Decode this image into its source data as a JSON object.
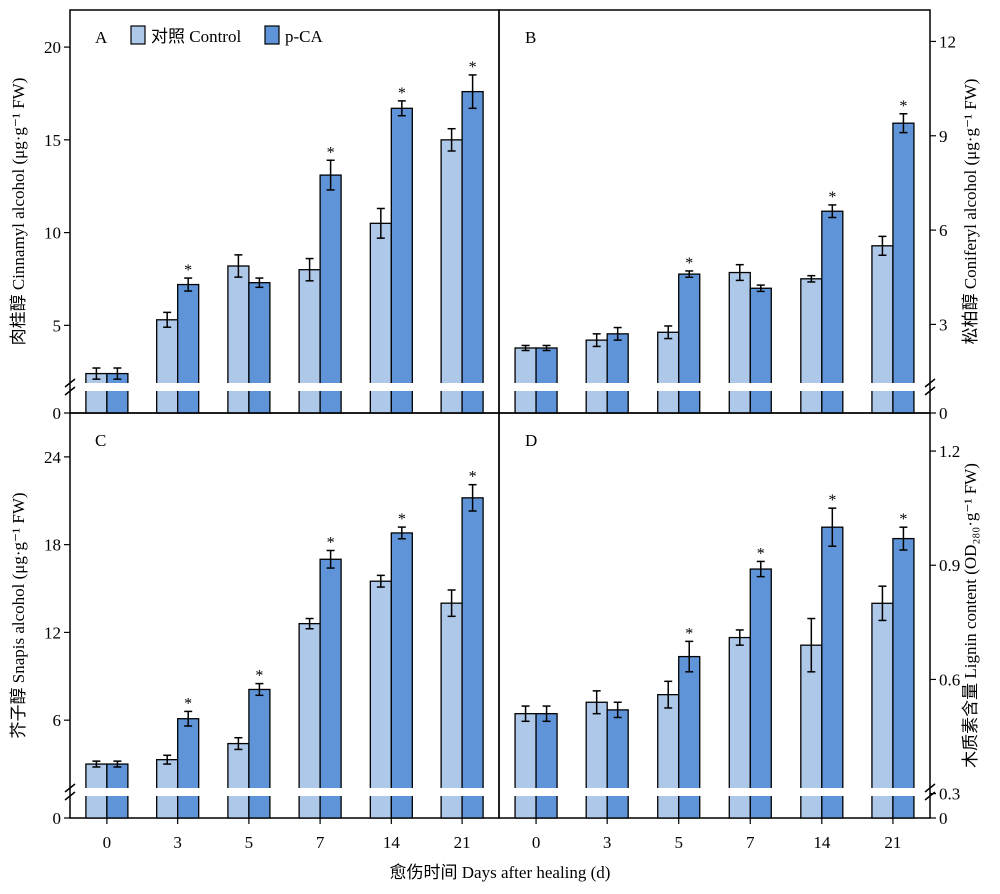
{
  "colors": {
    "control": "#aec8ea",
    "treatment": "#5f95d8",
    "stroke": "#000000"
  },
  "legend": {
    "control": "对照 Control",
    "treatment": "p-CA"
  },
  "shared_xlabel": "愈伤时间 Days after healing (d)",
  "chart_data": [
    {
      "id": "A",
      "type": "bar",
      "panel_label": "A",
      "ylabel": "肉桂醇 Cinnamyl alcohol (μg·g⁻¹ FW)",
      "categories": [
        "0",
        "3",
        "5",
        "7",
        "14",
        "21"
      ],
      "ylim": [
        0,
        22
      ],
      "break": [
        0,
        2
      ],
      "ticks": [
        0,
        5,
        10,
        15,
        20
      ],
      "series": [
        {
          "name": "对照 Control",
          "key": "control",
          "values": [
            2.4,
            5.3,
            8.2,
            8.0,
            10.5,
            15.0
          ],
          "errors": [
            0.3,
            0.4,
            0.6,
            0.6,
            0.8,
            0.6
          ],
          "stars": [
            false,
            false,
            false,
            false,
            false,
            false
          ]
        },
        {
          "name": "p-CA",
          "key": "treatment",
          "values": [
            2.4,
            7.2,
            7.3,
            13.1,
            16.7,
            17.6
          ],
          "errors": [
            0.3,
            0.35,
            0.25,
            0.8,
            0.4,
            0.9
          ],
          "stars": [
            false,
            true,
            false,
            true,
            true,
            true
          ]
        }
      ]
    },
    {
      "id": "B",
      "type": "bar",
      "panel_label": "B",
      "ylabel": "松柏醇 Coniferyl alcohol (μg·g⁻¹ FW)",
      "categories": [
        "0",
        "3",
        "5",
        "7",
        "14",
        "21"
      ],
      "ylim": [
        0,
        13
      ],
      "break": [
        0,
        1.2
      ],
      "ticks": [
        0,
        3,
        6,
        9,
        12
      ],
      "series": [
        {
          "name": "对照 Control",
          "key": "control",
          "values": [
            2.25,
            2.5,
            2.75,
            4.65,
            4.45,
            5.5
          ],
          "errors": [
            0.08,
            0.2,
            0.2,
            0.25,
            0.1,
            0.3
          ],
          "stars": [
            false,
            false,
            false,
            false,
            false,
            false
          ]
        },
        {
          "name": "p-CA",
          "key": "treatment",
          "values": [
            2.25,
            2.7,
            4.6,
            4.15,
            6.6,
            9.4
          ],
          "errors": [
            0.08,
            0.2,
            0.1,
            0.1,
            0.2,
            0.3
          ],
          "stars": [
            false,
            false,
            true,
            false,
            true,
            true
          ]
        }
      ]
    },
    {
      "id": "C",
      "type": "bar",
      "panel_label": "C",
      "ylabel": "芥子醇 Snapis alcohol (μg·g⁻¹ FW)",
      "categories": [
        "0",
        "3",
        "5",
        "7",
        "14",
        "21"
      ],
      "ylim": [
        0,
        27
      ],
      "break": [
        0,
        1.5
      ],
      "ticks": [
        0,
        6,
        12,
        18,
        24
      ],
      "series": [
        {
          "name": "对照 Control",
          "key": "control",
          "values": [
            3.0,
            3.3,
            4.4,
            12.6,
            15.5,
            14.0
          ],
          "errors": [
            0.2,
            0.3,
            0.4,
            0.35,
            0.4,
            0.9
          ],
          "stars": [
            false,
            false,
            false,
            false,
            false,
            false
          ]
        },
        {
          "name": "p-CA",
          "key": "treatment",
          "values": [
            3.0,
            6.1,
            8.1,
            17.0,
            18.8,
            21.2
          ],
          "errors": [
            0.2,
            0.5,
            0.4,
            0.6,
            0.4,
            0.9
          ],
          "stars": [
            false,
            true,
            true,
            true,
            true,
            true
          ]
        }
      ]
    },
    {
      "id": "D",
      "type": "bar",
      "panel_label": "D",
      "ylabel": "木质素含量 Lignin content (OD₂₈₀·g⁻¹ FW)",
      "categories": [
        "0",
        "3",
        "5",
        "7",
        "14",
        "21"
      ],
      "ylim": [
        0,
        1.3
      ],
      "break": [
        0,
        0.32
      ],
      "ticks": [
        0,
        0.3,
        0.6,
        0.9,
        1.2
      ],
      "tick_labels": [
        "0",
        "0.3",
        "0.6",
        "0.9",
        "1.2"
      ],
      "series": [
        {
          "name": "对照 Control",
          "key": "control",
          "values": [
            0.51,
            0.54,
            0.56,
            0.71,
            0.69,
            0.8
          ],
          "errors": [
            0.02,
            0.03,
            0.035,
            0.02,
            0.07,
            0.045
          ],
          "stars": [
            false,
            false,
            false,
            false,
            false,
            false
          ]
        },
        {
          "name": "p-CA",
          "key": "treatment",
          "values": [
            0.51,
            0.52,
            0.66,
            0.89,
            1.0,
            0.97
          ],
          "errors": [
            0.02,
            0.02,
            0.04,
            0.02,
            0.05,
            0.03
          ],
          "stars": [
            false,
            false,
            true,
            true,
            true,
            true
          ]
        }
      ]
    }
  ]
}
